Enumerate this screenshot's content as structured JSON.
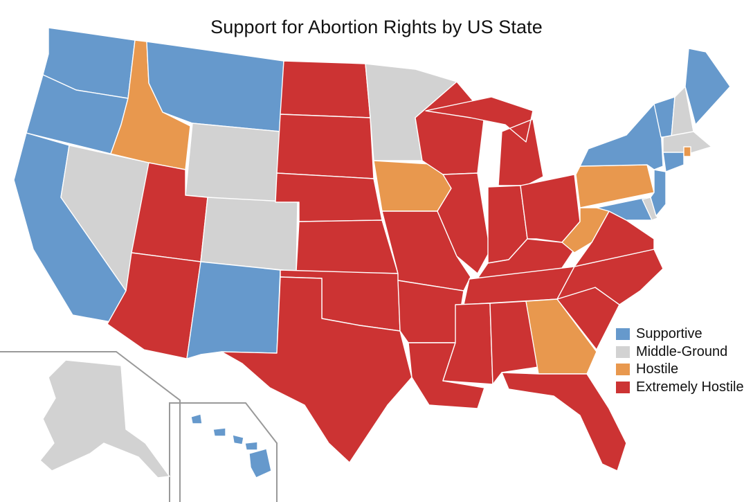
{
  "title": "Support for Abortion Rights by US State",
  "colors": {
    "supportive": "#6699cc",
    "middle_ground": "#d2d2d2",
    "hostile": "#e8984e",
    "extremely_hostile": "#cc3333"
  },
  "legend": [
    {
      "label": "Supportive",
      "category": "supportive"
    },
    {
      "label": "Middle-Ground",
      "category": "middle_ground"
    },
    {
      "label": "Hostile",
      "category": "hostile"
    },
    {
      "label": "Extremely Hostile",
      "category": "extremely_hostile"
    }
  ],
  "states": {
    "WA": "supportive",
    "OR": "supportive",
    "CA": "supportive",
    "NV": "middle_ground",
    "ID": "hostile",
    "MT": "supportive",
    "WY": "middle_ground",
    "UT": "extremely_hostile",
    "AZ": "extremely_hostile",
    "CO": "middle_ground",
    "NM": "supportive",
    "ND": "extremely_hostile",
    "SD": "extremely_hostile",
    "NE": "extremely_hostile",
    "KS": "extremely_hostile",
    "OK": "extremely_hostile",
    "TX": "extremely_hostile",
    "MN": "middle_ground",
    "IA": "hostile",
    "MO": "extremely_hostile",
    "AR": "extremely_hostile",
    "LA": "extremely_hostile",
    "WI": "extremely_hostile",
    "IL": "extremely_hostile",
    "MI": "extremely_hostile",
    "IN": "extremely_hostile",
    "OH": "extremely_hostile",
    "KY": "extremely_hostile",
    "TN": "extremely_hostile",
    "MS": "extremely_hostile",
    "AL": "extremely_hostile",
    "GA": "hostile",
    "FL": "extremely_hostile",
    "SC": "extremely_hostile",
    "NC": "extremely_hostile",
    "VA": "extremely_hostile",
    "WV": "hostile",
    "PA": "hostile",
    "NY": "supportive",
    "VT": "supportive",
    "NH": "middle_ground",
    "ME": "supportive",
    "MA": "middle_ground",
    "RI": "hostile",
    "CT": "supportive",
    "NJ": "supportive",
    "DE": "middle_ground",
    "MD": "supportive",
    "AK": "middle_ground",
    "HI": "supportive"
  }
}
